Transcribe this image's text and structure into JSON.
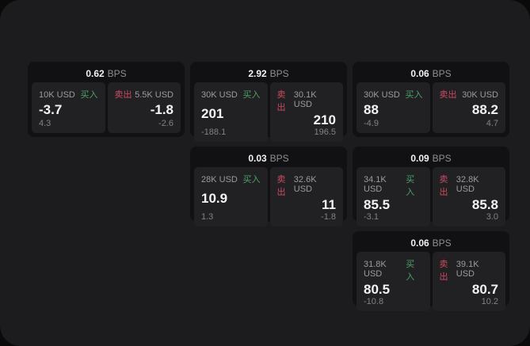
{
  "labels": {
    "bps": "BPS",
    "buy": "买入",
    "sell": "卖出"
  },
  "colors": {
    "buy_accent": "#4da167",
    "sell_accent": "#cc4a5f",
    "panel_bg": "#1c1c1e",
    "card_bg": "#111113",
    "tile_bg": "#212124"
  },
  "cards": [
    {
      "bps": "0.62",
      "buy": {
        "notional": "10K USD",
        "price": "-3.7",
        "delta": "4.3"
      },
      "sell": {
        "notional": "5.5K USD",
        "price": "-1.8",
        "delta": "-2.6"
      }
    },
    {
      "bps": "2.92",
      "buy": {
        "notional": "30K USD",
        "price": "201",
        "delta": "-188.1"
      },
      "sell": {
        "notional": "30.1K USD",
        "price": "210",
        "delta": "196.5"
      }
    },
    {
      "bps": "0.06",
      "buy": {
        "notional": "30K USD",
        "price": "88",
        "delta": "-4.9"
      },
      "sell": {
        "notional": "30K USD",
        "price": "88.2",
        "delta": "4.7"
      }
    },
    {
      "bps": "0.03",
      "buy": {
        "notional": "28K USD",
        "price": "10.9",
        "delta": "1.3"
      },
      "sell": {
        "notional": "32.6K USD",
        "price": "11",
        "delta": "-1.8"
      }
    },
    {
      "bps": "0.09",
      "buy": {
        "notional": "34.1K USD",
        "price": "85.5",
        "delta": "-3.1"
      },
      "sell": {
        "notional": "32.8K USD",
        "price": "85.8",
        "delta": "3.0"
      }
    },
    {
      "bps": "0.06",
      "buy": {
        "notional": "31.8K USD",
        "price": "80.5",
        "delta": "-10.8"
      },
      "sell": {
        "notional": "39.1K USD",
        "price": "80.7",
        "delta": "10.2"
      }
    }
  ]
}
